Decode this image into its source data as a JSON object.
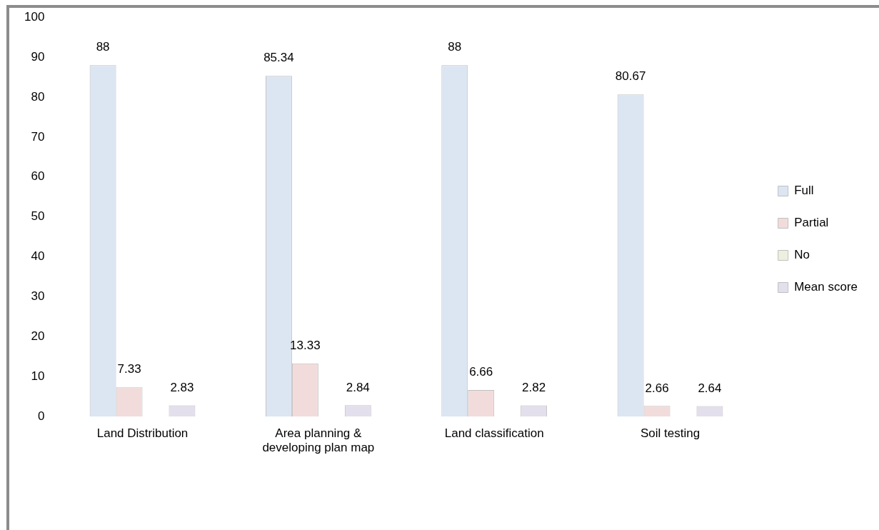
{
  "chart_data": {
    "type": "bar",
    "categories": [
      "Land Distribution",
      "Area planning & developing plan map",
      "Land classification",
      "Soil testing"
    ],
    "series": [
      {
        "name": "Full",
        "color": "#dce6f2",
        "values": [
          88,
          85.34,
          88,
          80.67
        ]
      },
      {
        "name": "Partial",
        "color": "#f2dcdb",
        "values": [
          7.33,
          13.33,
          6.66,
          2.66
        ]
      },
      {
        "name": "No",
        "color": "#ebf1de",
        "values": [
          null,
          null,
          null,
          null
        ]
      },
      {
        "name": "Mean score",
        "color": "#e4dfec",
        "values": [
          2.83,
          2.84,
          2.82,
          2.64
        ]
      }
    ],
    "ylim": [
      0,
      100
    ],
    "yticks": [
      0,
      10,
      20,
      30,
      40,
      50,
      60,
      70,
      80,
      90,
      100
    ],
    "grid": false,
    "legend": "right",
    "data_labels": true
  }
}
